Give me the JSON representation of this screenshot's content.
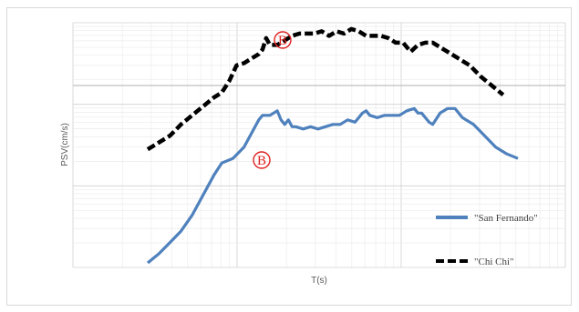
{
  "chart_data": {
    "type": "line",
    "title": "",
    "xlabel": "T(s)",
    "ylabel": "PSV(cm/s)",
    "xscale": "log",
    "yscale": "log",
    "grid": true,
    "legend_position": "bottom-right",
    "series": [
      {
        "name": "\"San Fernando\"",
        "style": "solid",
        "color": "#4f81bd",
        "points": [
          [
            0.0,
            0.04
          ],
          [
            0.03,
            0.08
          ],
          [
            0.06,
            0.13
          ],
          [
            0.09,
            0.18
          ],
          [
            0.12,
            0.25
          ],
          [
            0.15,
            0.34
          ],
          [
            0.18,
            0.43
          ],
          [
            0.2,
            0.48
          ],
          [
            0.23,
            0.5
          ],
          [
            0.26,
            0.55
          ],
          [
            0.28,
            0.61
          ],
          [
            0.3,
            0.67
          ],
          [
            0.31,
            0.69
          ],
          [
            0.33,
            0.69
          ],
          [
            0.35,
            0.71
          ],
          [
            0.36,
            0.67
          ],
          [
            0.37,
            0.65
          ],
          [
            0.38,
            0.67
          ],
          [
            0.39,
            0.64
          ],
          [
            0.4,
            0.64
          ],
          [
            0.42,
            0.63
          ],
          [
            0.44,
            0.64
          ],
          [
            0.46,
            0.63
          ],
          [
            0.48,
            0.64
          ],
          [
            0.5,
            0.65
          ],
          [
            0.52,
            0.65
          ],
          [
            0.54,
            0.67
          ],
          [
            0.56,
            0.66
          ],
          [
            0.58,
            0.7
          ],
          [
            0.59,
            0.71
          ],
          [
            0.6,
            0.69
          ],
          [
            0.62,
            0.68
          ],
          [
            0.64,
            0.69
          ],
          [
            0.66,
            0.69
          ],
          [
            0.68,
            0.69
          ],
          [
            0.7,
            0.71
          ],
          [
            0.72,
            0.72
          ],
          [
            0.73,
            0.7
          ],
          [
            0.74,
            0.7
          ],
          [
            0.76,
            0.66
          ],
          [
            0.77,
            0.65
          ],
          [
            0.79,
            0.7
          ],
          [
            0.81,
            0.72
          ],
          [
            0.83,
            0.72
          ],
          [
            0.85,
            0.68
          ],
          [
            0.88,
            0.65
          ],
          [
            0.91,
            0.6
          ],
          [
            0.94,
            0.55
          ],
          [
            0.97,
            0.52
          ],
          [
            1.0,
            0.5
          ]
        ]
      },
      {
        "name": "\"Chi Chi\"",
        "style": "dashed",
        "color": "#000000",
        "points": [
          [
            0.0,
            0.54
          ],
          [
            0.03,
            0.57
          ],
          [
            0.06,
            0.6
          ],
          [
            0.09,
            0.65
          ],
          [
            0.12,
            0.69
          ],
          [
            0.15,
            0.73
          ],
          [
            0.18,
            0.77
          ],
          [
            0.2,
            0.79
          ],
          [
            0.22,
            0.84
          ],
          [
            0.24,
            0.91
          ],
          [
            0.26,
            0.92
          ],
          [
            0.28,
            0.94
          ],
          [
            0.3,
            0.96
          ],
          [
            0.31,
            0.98
          ],
          [
            0.32,
            1.03
          ],
          [
            0.33,
            1.0
          ],
          [
            0.35,
            1.0
          ],
          [
            0.37,
            1.02
          ],
          [
            0.39,
            1.04
          ],
          [
            0.41,
            1.05
          ],
          [
            0.43,
            1.05
          ],
          [
            0.45,
            1.05
          ],
          [
            0.47,
            1.06
          ],
          [
            0.49,
            1.04
          ],
          [
            0.51,
            1.06
          ],
          [
            0.53,
            1.05
          ],
          [
            0.55,
            1.07
          ],
          [
            0.57,
            1.06
          ],
          [
            0.59,
            1.04
          ],
          [
            0.61,
            1.04
          ],
          [
            0.63,
            1.04
          ],
          [
            0.65,
            1.03
          ],
          [
            0.67,
            1.01
          ],
          [
            0.69,
            1.01
          ],
          [
            0.71,
            0.97
          ],
          [
            0.73,
            1.0
          ],
          [
            0.75,
            1.01
          ],
          [
            0.77,
            1.01
          ],
          [
            0.79,
            0.99
          ],
          [
            0.81,
            0.97
          ],
          [
            0.84,
            0.94
          ],
          [
            0.87,
            0.91
          ],
          [
            0.9,
            0.86
          ],
          [
            0.93,
            0.82
          ],
          [
            0.96,
            0.78
          ]
        ]
      }
    ],
    "annotations": [
      "B",
      "B"
    ]
  }
}
